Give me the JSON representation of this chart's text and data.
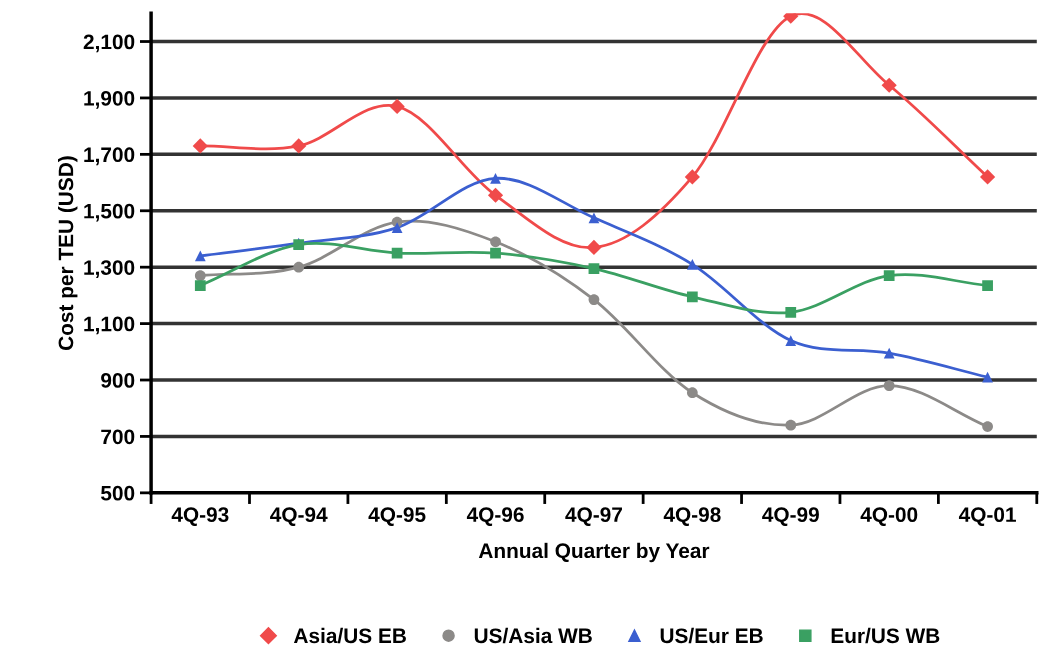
{
  "chart_data": {
    "type": "line",
    "xlabel": "Annual Quarter by Year",
    "ylabel": "Cost per TEU (USD)",
    "categories": [
      "4Q-93",
      "4Q-94",
      "4Q-95",
      "4Q-96",
      "4Q-97",
      "4Q-98",
      "4Q-99",
      "4Q-00",
      "4Q-01"
    ],
    "series": [
      {
        "name": "Asia/US EB",
        "color": "#f04a4a",
        "marker": "diamond",
        "values": [
          1730,
          1730,
          1870,
          1555,
          1370,
          1620,
          2190,
          1945,
          1620
        ]
      },
      {
        "name": "US/Asia WB",
        "color": "#8c8a88",
        "marker": "circle",
        "values": [
          1270,
          1300,
          1460,
          1390,
          1185,
          855,
          740,
          880,
          735
        ]
      },
      {
        "name": "US/Eur EB",
        "color": "#3b5fd0",
        "marker": "triangle",
        "values": [
          1340,
          1385,
          1440,
          1615,
          1475,
          1310,
          1040,
          995,
          910
        ]
      },
      {
        "name": "Eur/US WB",
        "color": "#3aa062",
        "marker": "square",
        "values": [
          1235,
          1380,
          1350,
          1350,
          1295,
          1195,
          1140,
          1270,
          1235
        ]
      }
    ],
    "ylim": [
      500,
      2200
    ],
    "yticks": [
      {
        "value": 500,
        "label": "500"
      },
      {
        "value": 700,
        "label": "700"
      },
      {
        "value": 900,
        "label": "900"
      },
      {
        "value": 1100,
        "label": "1,100"
      },
      {
        "value": 1300,
        "label": "1,300"
      },
      {
        "value": 1500,
        "label": "1,500"
      },
      {
        "value": 1700,
        "label": "1,700"
      },
      {
        "value": 1900,
        "label": "1,900"
      },
      {
        "value": 2100,
        "label": "2,100"
      }
    ],
    "grid": "y",
    "legend": "bottom",
    "line_style": "solid"
  }
}
